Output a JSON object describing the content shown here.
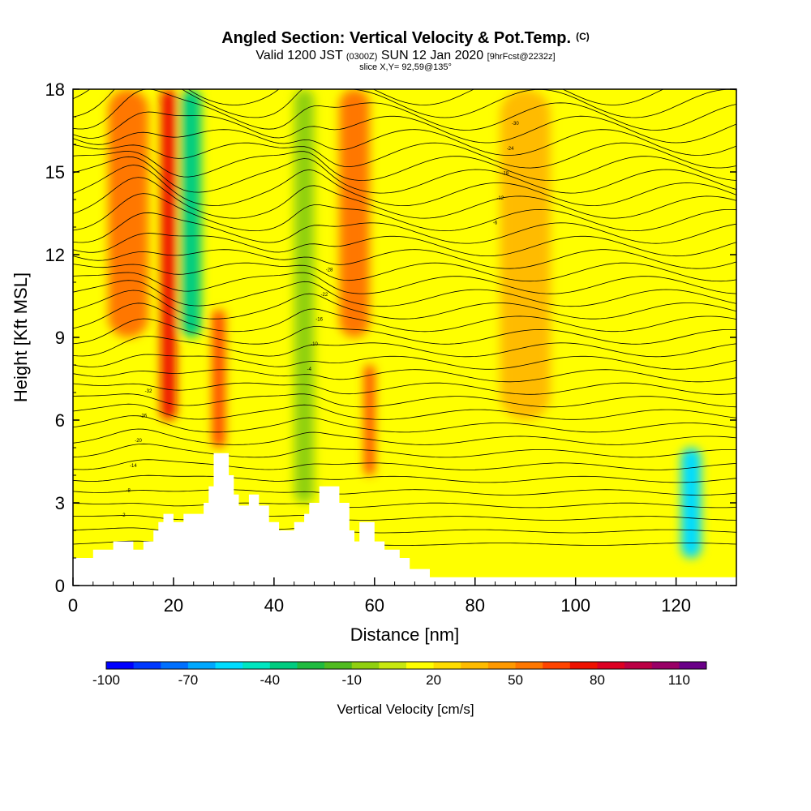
{
  "title": {
    "main": "Angled Section: Vertical Velocity & Pot.Temp.",
    "units": "(C)",
    "valid_a": "Valid 1200 JST",
    "valid_b": "(0300Z)",
    "valid_c": "SUN 12 Jan 2020",
    "valid_d": "[9hrFcst@2232z]",
    "slice": "slice X,Y= 92,59@135°"
  },
  "chart_data": {
    "type": "heatmap",
    "xlabel": "Distance [nm]",
    "ylabel": "Height [Kft MSL]",
    "xlim": [
      0,
      132
    ],
    "ylim": [
      0,
      18
    ],
    "xticks": [
      "0",
      "20",
      "40",
      "60",
      "80",
      "100",
      "120"
    ],
    "yticks": [
      "0",
      "3",
      "6",
      "9",
      "12",
      "15",
      "18"
    ],
    "colorbar": {
      "title": "Vertical Velocity [cm/s]",
      "labels": [
        "-100",
        "-70",
        "-40",
        "-10",
        "20",
        "50",
        "80",
        "110"
      ],
      "colors": [
        "#0000ff",
        "#0038ff",
        "#0070ff",
        "#00a8ff",
        "#00dcff",
        "#00e6c0",
        "#00cc80",
        "#20bb40",
        "#50bb20",
        "#90d010",
        "#c8e810",
        "#ffff00",
        "#ffdd00",
        "#ffbb00",
        "#ff9900",
        "#ff7700",
        "#ff4400",
        "#ee1100",
        "#dd0022",
        "#bb0044",
        "#990066",
        "#6a0088"
      ]
    },
    "contour_labels": [
      "-2",
      "-4",
      "-6",
      "-8",
      "-10",
      "-12",
      "-14",
      "-16",
      "-18",
      "-20",
      "-22",
      "-24",
      "-26",
      "-28",
      "-30",
      "-32"
    ],
    "terrain_profile_kft": [
      [
        0,
        1.0
      ],
      [
        4,
        1.0
      ],
      [
        4,
        1.3
      ],
      [
        8,
        1.3
      ],
      [
        8,
        1.6
      ],
      [
        12,
        1.6
      ],
      [
        12,
        1.3
      ],
      [
        14,
        1.3
      ],
      [
        14,
        1.6
      ],
      [
        16,
        1.6
      ],
      [
        16,
        2.0
      ],
      [
        17,
        2.0
      ],
      [
        17,
        2.3
      ],
      [
        18,
        2.3
      ],
      [
        18,
        2.6
      ],
      [
        20,
        2.6
      ],
      [
        20,
        2.3
      ],
      [
        22,
        2.3
      ],
      [
        22,
        2.6
      ],
      [
        26,
        2.6
      ],
      [
        26,
        3.0
      ],
      [
        27,
        3.0
      ],
      [
        27,
        3.6
      ],
      [
        28,
        3.6
      ],
      [
        28,
        4.8
      ],
      [
        31,
        4.8
      ],
      [
        31,
        4.0
      ],
      [
        32,
        4.0
      ],
      [
        32,
        3.3
      ],
      [
        33,
        3.3
      ],
      [
        33,
        2.9
      ],
      [
        35,
        2.9
      ],
      [
        35,
        3.3
      ],
      [
        37,
        3.3
      ],
      [
        37,
        2.9
      ],
      [
        39,
        2.9
      ],
      [
        39,
        2.3
      ],
      [
        41,
        2.3
      ],
      [
        41,
        2.0
      ],
      [
        44,
        2.0
      ],
      [
        44,
        2.3
      ],
      [
        46,
        2.3
      ],
      [
        46,
        2.6
      ],
      [
        47,
        2.6
      ],
      [
        47,
        3.0
      ],
      [
        49,
        3.0
      ],
      [
        49,
        3.6
      ],
      [
        53,
        3.6
      ],
      [
        53,
        3.0
      ],
      [
        55,
        3.0
      ],
      [
        55,
        2.0
      ],
      [
        56,
        2.0
      ],
      [
        56,
        1.6
      ],
      [
        57,
        1.6
      ],
      [
        57,
        2.3
      ],
      [
        60,
        2.3
      ],
      [
        60,
        1.6
      ],
      [
        62,
        1.6
      ],
      [
        62,
        1.3
      ],
      [
        65,
        1.3
      ],
      [
        65,
        1.0
      ],
      [
        67,
        1.0
      ],
      [
        67,
        0.6
      ],
      [
        71,
        0.6
      ],
      [
        71,
        0.3
      ],
      [
        132,
        0.3
      ]
    ],
    "vertical_velocity_bands": [
      {
        "x": 11,
        "width": 8,
        "value": 50,
        "from_kft": 9,
        "to_kft": 18
      },
      {
        "x": 19,
        "width": 3,
        "value": 65,
        "from_kft": 6,
        "to_kft": 18
      },
      {
        "x": 23.5,
        "width": 4,
        "value": -40,
        "from_kft": 9,
        "to_kft": 18
      },
      {
        "x": 29,
        "width": 2.5,
        "value": 60,
        "from_kft": 5,
        "to_kft": 10
      },
      {
        "x": 46,
        "width": 4,
        "value": -10,
        "from_kft": 3,
        "to_kft": 18
      },
      {
        "x": 56,
        "width": 6,
        "value": 45,
        "from_kft": 9,
        "to_kft": 18
      },
      {
        "x": 59,
        "width": 2,
        "value": 60,
        "from_kft": 4,
        "to_kft": 8
      },
      {
        "x": 90,
        "width": 10,
        "value": 25,
        "from_kft": 6,
        "to_kft": 18
      },
      {
        "x": 123,
        "width": 4,
        "value": -60,
        "from_kft": 1,
        "to_kft": 5
      }
    ]
  }
}
